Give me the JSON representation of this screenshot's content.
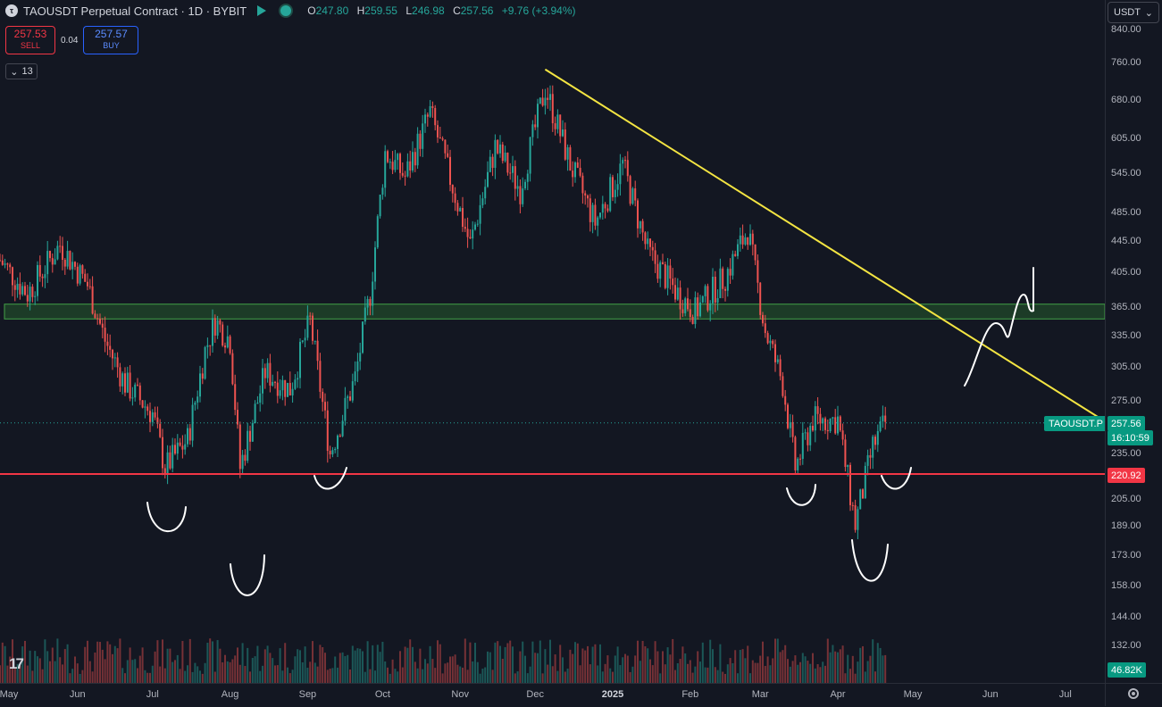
{
  "header": {
    "symbol_title": "TAOUSDT Perpetual Contract · 1D · BYBIT",
    "logo_glyph": "τ",
    "ohlc": {
      "o_label": "O",
      "o_value": "247.80",
      "h_label": "H",
      "h_value": "259.55",
      "l_label": "L",
      "l_value": "246.98",
      "c_label": "C",
      "c_value": "257.56",
      "change": "+9.76 (+3.94%)"
    }
  },
  "trade_panel": {
    "sell_price": "257.53",
    "sell_label": "SELL",
    "spread": "0.04",
    "buy_price": "257.57",
    "buy_label": "BUY"
  },
  "indicators_toggle": {
    "arrow": "⌄",
    "count": "13"
  },
  "currency_select": {
    "value": "USDT",
    "arrow": "⌄"
  },
  "colors": {
    "background": "#131722",
    "up": "#26a69a",
    "down": "#ef5350",
    "trendline": "#f4e542",
    "support_line": "#f23645",
    "zone": "#2e7d32"
  },
  "price_axis_ticks": [
    "840.00",
    "760.00",
    "680.00",
    "605.00",
    "545.00",
    "485.00",
    "445.00",
    "405.00",
    "365.00",
    "335.00",
    "305.00",
    "275.00",
    "235.00",
    "205.00",
    "189.00",
    "173.00",
    "158.00",
    "144.00",
    "132.00"
  ],
  "time_axis_ticks": [
    "May",
    "Jun",
    "Jul",
    "Aug",
    "Sep",
    "Oct",
    "Nov",
    "Dec",
    "2025",
    "Feb",
    "Mar",
    "Apr",
    "May",
    "Jun",
    "Jul"
  ],
  "last_price_label": "257.56",
  "countdown_label": "16:10:59",
  "support_price_label": "220.92",
  "symbol_tag": "TAOUSDT.P",
  "volume_label": "46.82K",
  "chart_data": {
    "type": "candlestick",
    "symbol": "TAOUSDT.P",
    "interval": "1D",
    "scale": "log",
    "ylim": [
      120,
      880
    ],
    "x_range": [
      "2024-05-01",
      "2025-07-31"
    ],
    "grid": false,
    "last_close": 257.56,
    "support_level": 220.92,
    "resistance_zone": [
      352,
      368
    ],
    "trendline": [
      {
        "date": "2024-12-05",
        "price": 745
      },
      {
        "date": "2025-02-24",
        "price": 490
      },
      {
        "date": "2025-07-31",
        "price": 242
      }
    ],
    "close_path": [
      {
        "date": "2024-05-01",
        "price": 420
      },
      {
        "date": "2024-05-12",
        "price": 380
      },
      {
        "date": "2024-05-25",
        "price": 440
      },
      {
        "date": "2024-06-05",
        "price": 390
      },
      {
        "date": "2024-06-12",
        "price": 330
      },
      {
        "date": "2024-06-20",
        "price": 290
      },
      {
        "date": "2024-07-01",
        "price": 265
      },
      {
        "date": "2024-07-06",
        "price": 225
      },
      {
        "date": "2024-07-15",
        "price": 245
      },
      {
        "date": "2024-07-22",
        "price": 320
      },
      {
        "date": "2024-07-26",
        "price": 350
      },
      {
        "date": "2024-08-01",
        "price": 330
      },
      {
        "date": "2024-08-05",
        "price": 225
      },
      {
        "date": "2024-08-15",
        "price": 300
      },
      {
        "date": "2024-08-25",
        "price": 285
      },
      {
        "date": "2024-09-02",
        "price": 350
      },
      {
        "date": "2024-09-10",
        "price": 235
      },
      {
        "date": "2024-09-20",
        "price": 295
      },
      {
        "date": "2024-09-26",
        "price": 380
      },
      {
        "date": "2024-10-02",
        "price": 580
      },
      {
        "date": "2024-10-10",
        "price": 540
      },
      {
        "date": "2024-10-20",
        "price": 655
      },
      {
        "date": "2024-11-05",
        "price": 440
      },
      {
        "date": "2024-11-15",
        "price": 590
      },
      {
        "date": "2024-11-25",
        "price": 520
      },
      {
        "date": "2024-12-05",
        "price": 705
      },
      {
        "date": "2024-12-15",
        "price": 560
      },
      {
        "date": "2024-12-25",
        "price": 470
      },
      {
        "date": "2025-01-05",
        "price": 560
      },
      {
        "date": "2025-01-15",
        "price": 430
      },
      {
        "date": "2025-01-27",
        "price": 380
      },
      {
        "date": "2025-02-03",
        "price": 360
      },
      {
        "date": "2025-02-15",
        "price": 400
      },
      {
        "date": "2025-02-24",
        "price": 460
      },
      {
        "date": "2025-03-03",
        "price": 340
      },
      {
        "date": "2025-03-10",
        "price": 290
      },
      {
        "date": "2025-03-15",
        "price": 225
      },
      {
        "date": "2025-03-22",
        "price": 260
      },
      {
        "date": "2025-04-01",
        "price": 260
      },
      {
        "date": "2025-04-08",
        "price": 190
      },
      {
        "date": "2025-04-15",
        "price": 240
      },
      {
        "date": "2025-04-20",
        "price": 257.56
      }
    ]
  }
}
